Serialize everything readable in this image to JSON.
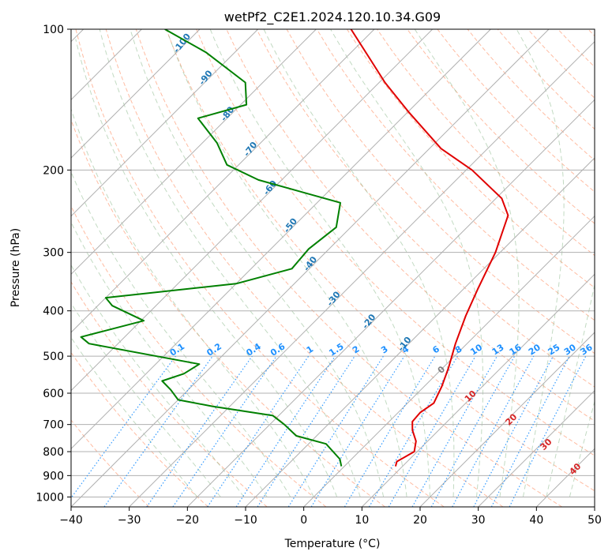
{
  "chart_data": {
    "type": "skew-t",
    "title": "wetPf2_C2E1.2024.120.10.34.G09",
    "xlabel": "Temperature (°C)",
    "ylabel": "Pressure (hPa)",
    "xlim": [
      -40,
      50
    ],
    "ylim": [
      1050,
      100
    ],
    "y_scale": "log",
    "grid": true,
    "x_ticks": [
      "−40",
      "−30",
      "−20",
      "−10",
      "0",
      "10",
      "20",
      "30",
      "40",
      "50"
    ],
    "y_ticks": [
      "100",
      "200",
      "300",
      "400",
      "500",
      "600",
      "700",
      "800",
      "900",
      "1000"
    ],
    "temperature": {
      "color": "#e00000",
      "points": [
        [
          8.8,
          860
        ],
        [
          8.2,
          840
        ],
        [
          9.5,
          800
        ],
        [
          8.0,
          760
        ],
        [
          5.5,
          720
        ],
        [
          4.0,
          690
        ],
        [
          3.8,
          660
        ],
        [
          4.5,
          630
        ],
        [
          3.0,
          580
        ],
        [
          1.0,
          530
        ],
        [
          -2.0,
          470
        ],
        [
          -5.0,
          410
        ],
        [
          -7.5,
          360
        ],
        [
          -10.8,
          300
        ],
        [
          -15.0,
          250
        ],
        [
          -19.0,
          230
        ],
        [
          -29.0,
          200
        ],
        [
          -38.0,
          180
        ],
        [
          -50.0,
          150
        ],
        [
          -59.0,
          130
        ],
        [
          -66.0,
          115
        ],
        [
          -74.0,
          100
        ]
      ]
    },
    "dewpoint": {
      "color": "#008000",
      "points": [
        [
          -0.5,
          860
        ],
        [
          -2.0,
          830
        ],
        [
          -7.0,
          770
        ],
        [
          -13.5,
          740
        ],
        [
          -17.5,
          700
        ],
        [
          -21.0,
          670
        ],
        [
          -33.0,
          640
        ],
        [
          -40.0,
          620
        ],
        [
          -43.0,
          590
        ],
        [
          -46.0,
          565
        ],
        [
          -43.5,
          545
        ],
        [
          -42.5,
          520
        ],
        [
          -65.0,
          470
        ],
        [
          -67.5,
          455
        ],
        [
          -59.5,
          420
        ],
        [
          -67.5,
          390
        ],
        [
          -70.0,
          375
        ],
        [
          -50.0,
          350
        ],
        [
          -43.0,
          325
        ],
        [
          -43.5,
          295
        ],
        [
          -42.5,
          265
        ],
        [
          -46.0,
          235
        ],
        [
          -64.0,
          210
        ],
        [
          -72.0,
          195
        ],
        [
          -77.5,
          175
        ],
        [
          -85.0,
          155
        ],
        [
          -79.0,
          145
        ],
        [
          -83.0,
          130
        ],
        [
          -95.0,
          112
        ],
        [
          -106.0,
          100
        ]
      ]
    },
    "dry_adiabat_labels": [
      "-100",
      "-90",
      "-80",
      "-70",
      "-60",
      "-50",
      "-40",
      "-30",
      "-20",
      "-10"
    ],
    "mixing_ratio_labels": [
      "0.1",
      "0.2",
      "0.4",
      "0.6",
      "1",
      "1.5",
      "2",
      "3",
      "4",
      "6",
      "8",
      "10",
      "13",
      "16",
      "20",
      "25",
      "30",
      "36"
    ],
    "moist_adiabat_labels": [
      "0",
      "10",
      "20",
      "30",
      "40"
    ]
  }
}
